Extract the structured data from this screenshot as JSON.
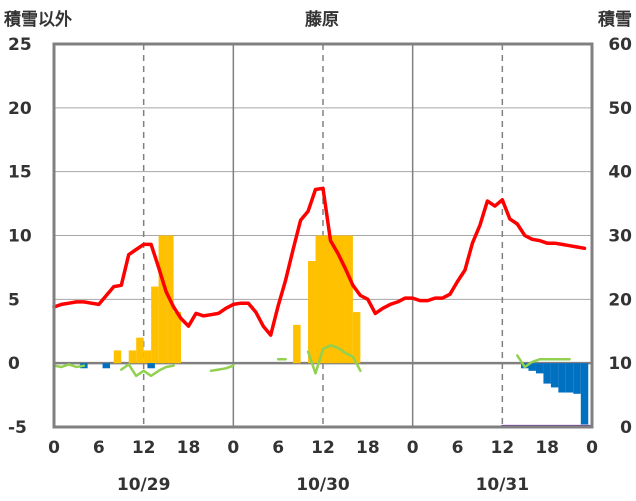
{
  "chart_data": {
    "type": "bar",
    "title": "藤原",
    "left_axis_title": "積雪以外",
    "right_axis_title": "積雪",
    "left_axis": {
      "ylim": [
        -5,
        25
      ],
      "ticks": [
        "25",
        "20",
        "15",
        "10",
        "5",
        "0",
        "-5"
      ]
    },
    "right_axis": {
      "ylim": [
        0,
        60
      ],
      "ticks": [
        "60",
        "50",
        "40",
        "30",
        "20",
        "10",
        "0"
      ]
    },
    "x_hour_ticks": [
      "0",
      "6",
      "12",
      "18",
      "0",
      "6",
      "12",
      "18",
      "0",
      "6",
      "12",
      "18",
      "0"
    ],
    "date_labels": [
      "10/29",
      "10/30",
      "10/31"
    ],
    "grid": true,
    "series": [
      {
        "kind": "bar",
        "color": "#ffc000",
        "axis": "left",
        "x": [
          8.5,
          10.5,
          11.5,
          12.5,
          13.5,
          14.5,
          15.5,
          16.5,
          32.5,
          34.5,
          35.5,
          36.5,
          37.5,
          38.5,
          39.5,
          40.5,
          41.5
        ],
        "y": [
          1,
          1,
          2,
          1,
          6,
          10,
          10,
          4,
          3,
          8,
          10,
          10,
          10,
          10,
          10,
          4,
          0
        ]
      },
      {
        "kind": "bar",
        "color": "#0070c0",
        "axis": "left",
        "x": [
          4,
          7,
          13,
          63,
          64,
          65,
          66,
          67,
          68,
          69,
          70,
          71
        ],
        "y": [
          -0.4,
          -0.4,
          -0.4,
          -0.4,
          -0.6,
          -0.8,
          -1.6,
          -1.9,
          -2.3,
          -2.3,
          -2.4,
          -4.8
        ]
      },
      {
        "kind": "line",
        "color": "#ff0000",
        "axis": "left",
        "x": [
          0,
          1,
          2,
          3,
          4,
          5,
          6,
          7,
          8,
          9,
          10,
          11,
          12,
          13,
          14,
          15,
          16,
          17,
          18,
          19,
          20,
          21,
          22,
          23,
          24,
          25,
          26,
          27,
          28,
          29,
          30,
          31,
          32,
          33,
          34,
          35,
          36,
          37,
          38,
          39,
          40,
          41,
          42,
          43,
          44,
          45,
          46,
          47,
          48,
          49,
          50,
          51,
          52,
          53,
          54,
          55,
          56,
          57,
          58,
          59,
          60,
          61,
          62,
          63,
          64,
          65,
          66,
          67,
          68,
          69,
          70,
          71
        ],
        "y": [
          4.4,
          4.6,
          4.7,
          4.8,
          4.8,
          4.7,
          4.6,
          5.3,
          6.0,
          6.1,
          8.5,
          8.9,
          9.3,
          9.3,
          7.5,
          5.6,
          4.4,
          3.5,
          2.9,
          3.9,
          3.7,
          3.8,
          3.9,
          4.3,
          4.6,
          4.7,
          4.7,
          4.0,
          2.9,
          2.2,
          4.5,
          6.5,
          8.9,
          11.2,
          11.9,
          13.6,
          13.7,
          9.6,
          8.6,
          7.4,
          6.1,
          5.3,
          5.0,
          3.9,
          4.3,
          4.6,
          4.8,
          5.1,
          5.1,
          4.9,
          4.9,
          5.1,
          5.1,
          5.4,
          6.4,
          7.3,
          9.4,
          10.8,
          12.7,
          12.3,
          12.8,
          11.3,
          10.9,
          10.0,
          9.7,
          9.6,
          9.4,
          9.4,
          9.3,
          9.2,
          9.1,
          9.0
        ]
      },
      {
        "kind": "line",
        "color": "#92d050",
        "axis": "left",
        "segments": [
          {
            "x": [
              0,
              1,
              2,
              3,
              4
            ],
            "y": [
              -0.2,
              -0.3,
              -0.1,
              -0.3,
              -0.2
            ]
          },
          {
            "x": [
              9,
              10,
              11,
              12,
              13,
              14,
              15,
              16
            ],
            "y": [
              -0.5,
              -0.1,
              -1.0,
              -0.6,
              -1.0,
              -0.6,
              -0.3,
              -0.2
            ]
          },
          {
            "x": [
              21,
              22,
              23,
              24
            ],
            "y": [
              -0.6,
              -0.5,
              -0.4,
              -0.2
            ]
          },
          {
            "x": [
              30,
              31
            ],
            "y": [
              0.3,
              0.3
            ]
          },
          {
            "x": [
              34,
              35,
              36,
              37,
              38,
              39,
              40,
              41
            ],
            "y": [
              0.9,
              -0.8,
              1.1,
              1.4,
              1.2,
              0.8,
              0.5,
              -0.6
            ]
          },
          {
            "x": [
              62,
              63,
              64,
              65,
              66,
              67,
              68,
              69
            ],
            "y": [
              0.6,
              -0.3,
              0.1,
              0.3,
              0.3,
              0.3,
              0.3,
              0.3
            ]
          }
        ]
      },
      {
        "kind": "line",
        "color": "#7030a0",
        "axis": "left",
        "x": [
          60,
          72
        ],
        "y": [
          -4.95,
          -4.95
        ]
      }
    ]
  }
}
